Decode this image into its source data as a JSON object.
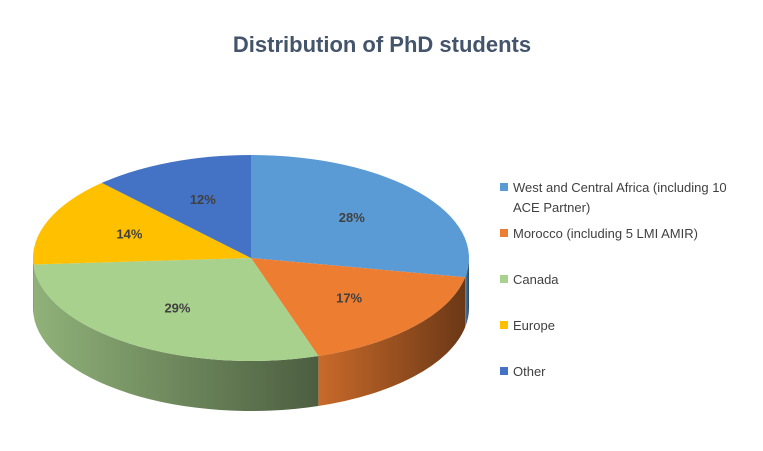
{
  "chart_data": {
    "type": "pie3d",
    "title": "Distribution of PhD students",
    "categories": [
      "West and Central Africa (including 10 ACE Partner)",
      "Morocco (including 5 LMI AMIR)",
      "Canada",
      "Europe",
      "Other"
    ],
    "values": [
      28,
      17,
      29,
      14,
      12
    ],
    "value_labels": [
      "28%",
      "17%",
      "29%",
      "14%",
      "12%"
    ],
    "colors": [
      "#5b9bd5",
      "#ed7d31",
      "#a9d18e",
      "#ffc000",
      "#4472c4"
    ],
    "legend": "right"
  }
}
